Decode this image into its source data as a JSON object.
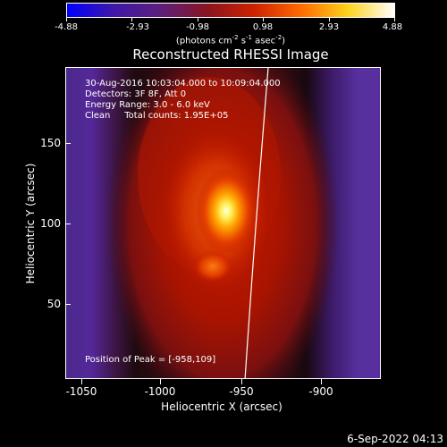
{
  "colorbar": {
    "tick_labels": [
      "-4.88",
      "-2.93",
      "-0.98",
      "0.98",
      "2.93",
      "4.88"
    ],
    "units_main": "(photons cm",
    "units_exp1": "-2",
    "units_mid": " s",
    "units_exp2": "-1",
    "units_mid2": " asec",
    "units_exp3": "-2",
    "units_end": ")",
    "colors": [
      "#0000ff",
      "#3f17a8",
      "#5c1f7c",
      "#8a1420",
      "#cc2200",
      "#ff6a00",
      "#ffd21a",
      "#ffffff"
    ]
  },
  "title": "Reconstructed RHESSI Image",
  "info": {
    "time_range": "30-Aug-2016 10:03:04.000 to 10:09:04.000",
    "detectors": "Detectors: 3F 8F, Att 0",
    "energy": "Energy Range: 3.0 - 6.0 keV",
    "clean": "Clean     Total counts: 1.95E+05",
    "peak": "Position of Peak = [-958,109]"
  },
  "x_axis": {
    "label": "Heliocentric X (arcsec)",
    "ticks": [
      "-1050",
      "-1000",
      "-950",
      "-900"
    ]
  },
  "y_axis": {
    "label": "Heliocentric Y (arcsec)",
    "ticks": [
      "150",
      "100",
      "50"
    ]
  },
  "timestamp": "6-Sep-2022 04:13"
}
